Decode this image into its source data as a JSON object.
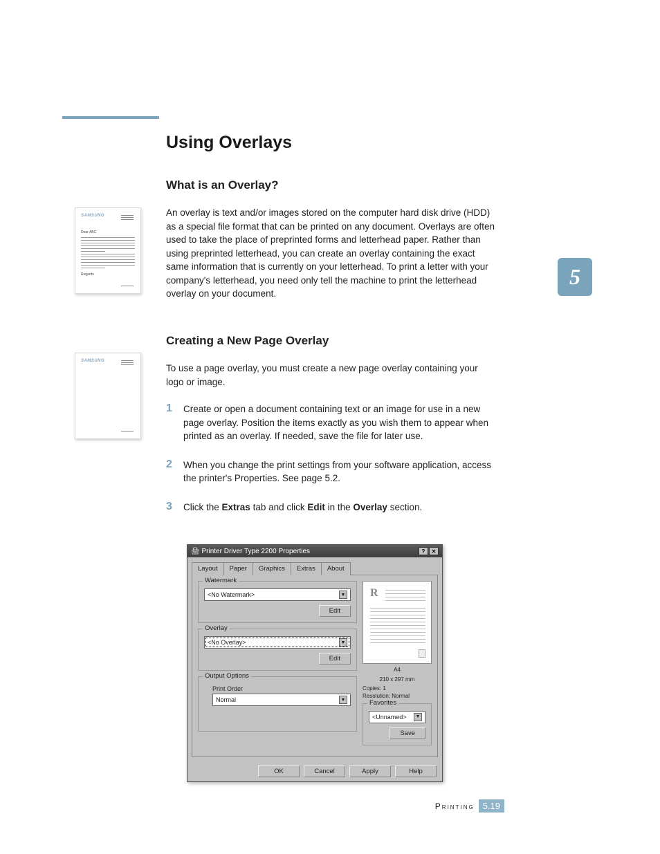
{
  "colors": {
    "accent": "#7aa3bc",
    "accent_light": "#8fb3c7",
    "text": "#222222",
    "dialog_bg": "#c2c2c2"
  },
  "main_title": "Using Overlays",
  "chapter_number": "5",
  "section1": {
    "heading": "What is an Overlay?",
    "body": "An overlay is text and/or images stored on the computer hard disk drive (HDD) as a special file format that can be printed on any document. Overlays are often used to take the place of preprinted forms and letterhead paper. Rather than using preprinted letterhead, you can create an overlay containing the exact same information that is currently on your letterhead. To print a letter with your company's letterhead, you need only tell the machine to print the letterhead overlay on your document."
  },
  "section2": {
    "heading": "Creating a New Page Overlay",
    "intro": "To use a page overlay, you must create a new page overlay containing your logo or image.",
    "steps": [
      {
        "num": "1",
        "text": "Create or open a document containing text or an image for use in a new page overlay. Position the items exactly as you wish them to appear when printed as an overlay. If needed, save the file for later use."
      },
      {
        "num": "2",
        "text": "When you change the print settings from your software application, access the printer's Properties. See page 5.2."
      },
      {
        "num": "3",
        "html": "Click the <b>Extras</b> tab and click <b>Edit</b> in the <b>Overlay</b> section."
      }
    ]
  },
  "thumb1": {
    "logo": "SAMSUNG",
    "dear": "Dear ABC",
    "regards": "Regards"
  },
  "thumb2": {
    "logo": "SAMSUNG"
  },
  "dialog": {
    "title": "Printer Driver Type 2200 Properties",
    "help_glyph": "?",
    "close_glyph": "✕",
    "tabs": [
      "Layout",
      "Paper",
      "Graphics",
      "Extras",
      "About"
    ],
    "active_tab": "Extras",
    "watermark": {
      "label": "Watermark",
      "value": "<No Watermark>",
      "edit": "Edit"
    },
    "overlay": {
      "label": "Overlay",
      "value": "<No Overlay>",
      "edit": "Edit"
    },
    "output": {
      "label": "Output Options",
      "print_order_label": "Print Order",
      "print_order_value": "Normal"
    },
    "preview": {
      "paper": "A4",
      "dims": "210 x 297 mm",
      "copies": "Copies: 1",
      "resolution": "Resolution: Normal",
      "R": "R"
    },
    "favorites": {
      "label": "Favorites",
      "value": "<Unnamed>",
      "save": "Save"
    },
    "buttons": [
      "OK",
      "Cancel",
      "Apply",
      "Help"
    ]
  },
  "footer": {
    "label": "Printing",
    "page": "5.19"
  }
}
